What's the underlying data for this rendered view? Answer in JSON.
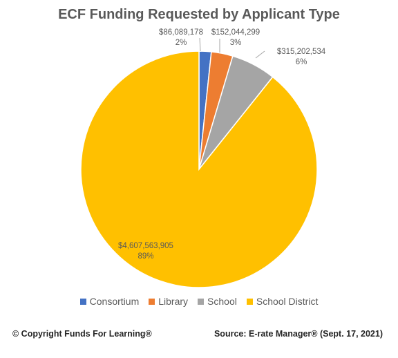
{
  "chart_data": {
    "type": "pie",
    "title": "ECF Funding Requested by Applicant Type",
    "categories": [
      "Consortium",
      "Library",
      "School",
      "School District"
    ],
    "values": [
      86089178,
      152044299,
      315202534,
      4607563905
    ],
    "value_labels": [
      "$86,089,178",
      "$152,044,299",
      "$315,202,534",
      "$4,607,563,905"
    ],
    "percent_labels": [
      "2%",
      "3%",
      "6%",
      "89%"
    ],
    "colors": [
      "#4472c4",
      "#ed7d31",
      "#a5a5a5",
      "#ffc000"
    ],
    "legend_position": "bottom",
    "start_angle": "top, clockwise"
  },
  "footer": {
    "copyright": "© Copyright Funds For Learning®",
    "source": "Source: E-rate Manager® (Sept. 17, 2021)"
  }
}
